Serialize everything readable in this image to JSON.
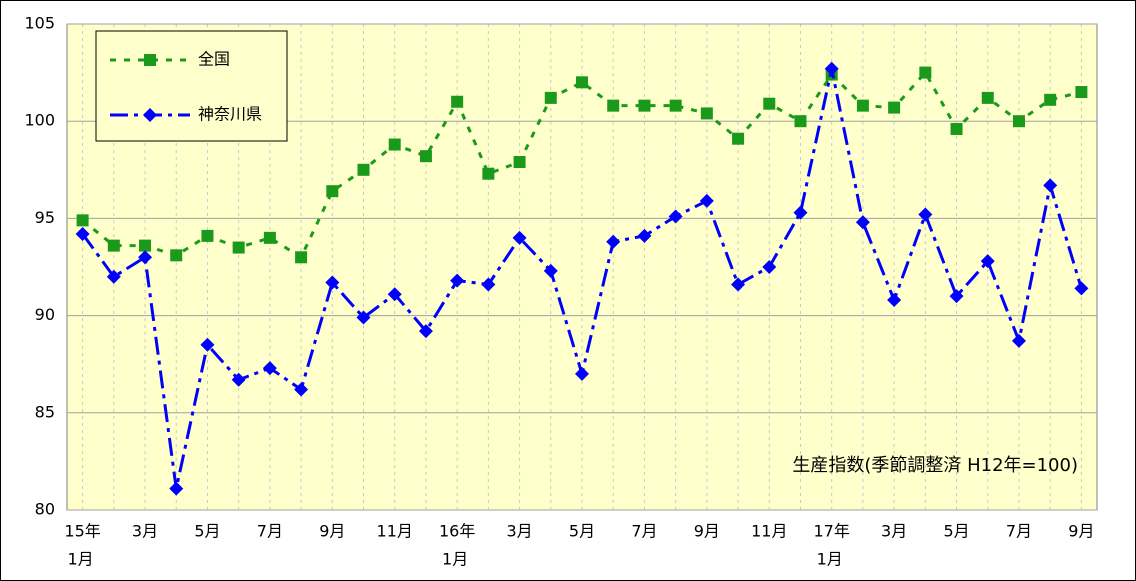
{
  "chart_data": {
    "type": "line",
    "annotation": "生産指数(季節調整済 H12年=100)",
    "categories": [
      [
        "15年",
        "1月"
      ],
      null,
      "3月",
      null,
      "5月",
      null,
      "7月",
      null,
      "9月",
      null,
      "11月",
      null,
      [
        "16年",
        "1月"
      ],
      null,
      "3月",
      null,
      "5月",
      null,
      "7月",
      null,
      "9月",
      null,
      "11月",
      null,
      [
        "17年",
        "1月"
      ],
      null,
      "3月",
      null,
      "5月",
      null,
      "7月",
      null,
      "9月"
    ],
    "series": [
      {
        "name": "全国",
        "color": "#1a9a1a",
        "marker": "square",
        "dash": "6,8",
        "values": [
          94.9,
          93.6,
          93.6,
          93.1,
          94.1,
          93.5,
          94.0,
          93.0,
          96.4,
          97.5,
          98.8,
          98.2,
          101.0,
          97.3,
          97.9,
          101.2,
          102.0,
          100.8,
          100.8,
          100.8,
          100.4,
          99.1,
          100.9,
          100.0,
          102.4,
          100.8,
          100.7,
          102.5,
          99.6,
          101.2,
          100.0,
          101.1,
          101.5
        ]
      },
      {
        "name": "神奈川県",
        "color": "#0000ff",
        "marker": "diamond",
        "dash": "18,6,4,6",
        "values": [
          94.2,
          92.0,
          93.0,
          81.1,
          88.5,
          86.7,
          87.3,
          86.2,
          91.7,
          89.9,
          91.1,
          89.2,
          91.8,
          91.6,
          94.0,
          92.3,
          87.0,
          93.8,
          94.1,
          95.1,
          95.9,
          91.6,
          92.5,
          95.3,
          102.7,
          94.8,
          90.8,
          95.2,
          91.0,
          92.8,
          88.7,
          96.7,
          91.4
        ]
      }
    ],
    "ylim": [
      80,
      105
    ],
    "yticks": [
      80,
      85,
      90,
      95,
      100,
      105
    ],
    "grid": true
  }
}
